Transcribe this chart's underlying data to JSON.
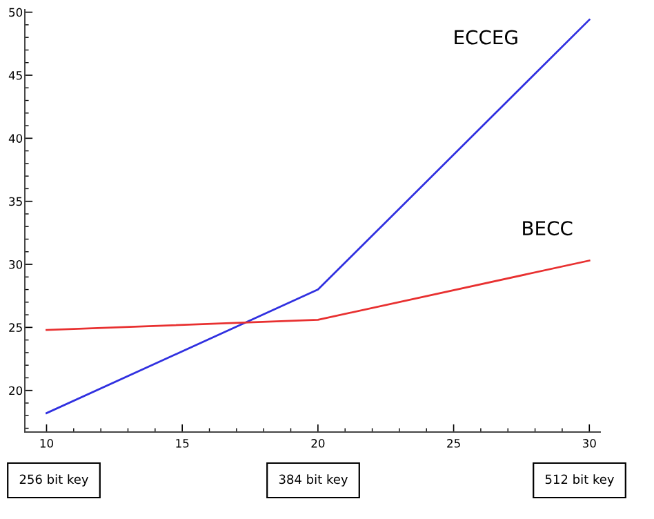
{
  "chart_data": {
    "type": "line",
    "x": [
      10,
      20,
      30
    ],
    "series": [
      {
        "name": "ECCEG",
        "color": "#3030e0",
        "values": [
          18.2,
          28.0,
          49.4
        ]
      },
      {
        "name": "BECC",
        "color": "#e83030",
        "values": [
          24.8,
          25.6,
          30.3
        ]
      }
    ],
    "xlim": [
      9.2,
      30.4
    ],
    "ylim": [
      16.7,
      50.2
    ],
    "xticks": [
      10,
      15,
      20,
      25,
      30
    ],
    "yticks": [
      20,
      25,
      30,
      35,
      40,
      45,
      50
    ],
    "grid": false,
    "legend": false,
    "marker": "none",
    "line_style": "solid",
    "annotations": [
      "256 bit key",
      "384 bit key",
      "512 bit key"
    ]
  }
}
